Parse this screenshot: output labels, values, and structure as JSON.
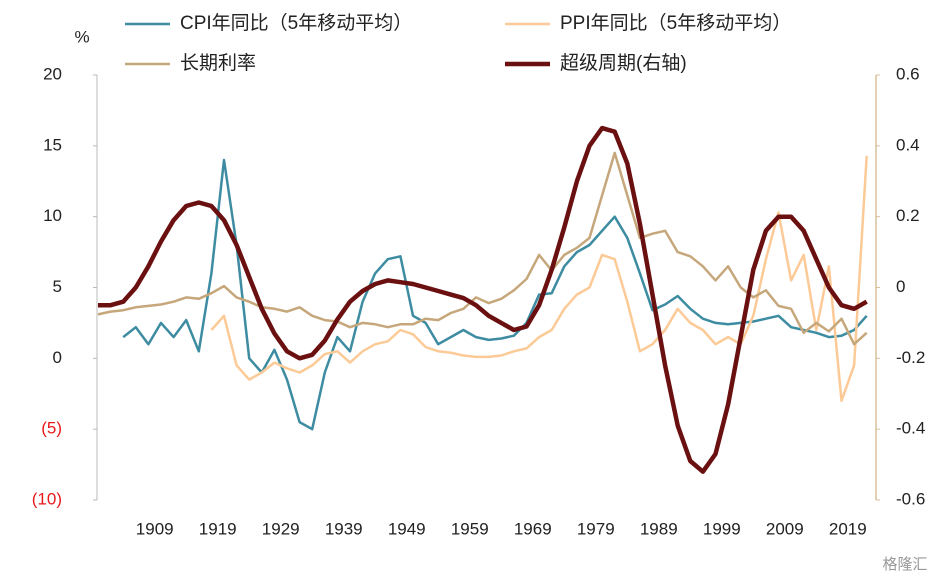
{
  "chart_data": {
    "type": "line",
    "y_label": "%",
    "watermark": "格隆汇",
    "x": [
      1900,
      1902,
      1904,
      1906,
      1908,
      1910,
      1912,
      1914,
      1916,
      1918,
      1920,
      1922,
      1924,
      1926,
      1928,
      1930,
      1932,
      1934,
      1936,
      1938,
      1940,
      1942,
      1944,
      1946,
      1948,
      1950,
      1952,
      1954,
      1956,
      1958,
      1960,
      1962,
      1964,
      1966,
      1968,
      1970,
      1972,
      1974,
      1976,
      1978,
      1980,
      1982,
      1984,
      1986,
      1988,
      1990,
      1992,
      1994,
      1996,
      1998,
      2000,
      2002,
      2004,
      2006,
      2008,
      2010,
      2012,
      2014,
      2016,
      2018,
      2020,
      2022
    ],
    "xlim": [
      1900,
      2023
    ],
    "xticks": [
      1909,
      1919,
      1929,
      1939,
      1949,
      1959,
      1969,
      1979,
      1989,
      1999,
      2009,
      2019
    ],
    "ylim": [
      -10,
      20
    ],
    "yticks": [
      {
        "value": -10,
        "label": "(10)"
      },
      {
        "value": -5,
        "label": "(5)"
      },
      0,
      5,
      10,
      15,
      20
    ],
    "negative_tick_color": "#e8191c",
    "y2lim": [
      -0.6,
      0.6
    ],
    "y2ticks": [
      -0.6,
      -0.4,
      -0.2,
      0,
      0.2,
      0.4,
      0.6
    ],
    "series": [
      {
        "name": "CPI年同比（5年移动平均）",
        "color": "#3d8ca1",
        "width": 2.5,
        "values": [
          null,
          null,
          1.5,
          2.2,
          1.0,
          2.5,
          1.5,
          2.7,
          0.5,
          6,
          14,
          8,
          0,
          -1,
          0.6,
          -1.5,
          -4.5,
          -5,
          -1,
          1.5,
          0.5,
          4,
          6,
          7,
          7.2,
          3,
          2.5,
          1,
          1.5,
          2,
          1.5,
          1.3,
          1.4,
          1.6,
          2.5,
          4.5,
          4.6,
          6.5,
          7.5,
          8,
          9,
          10,
          8.5,
          6,
          3.4,
          3.8,
          4.4,
          3.5,
          2.8,
          2.5,
          2.4,
          2.5,
          2.6,
          2.8,
          3,
          2.2,
          2,
          1.8,
          1.5,
          1.6,
          2,
          3
        ]
      },
      {
        "name": "PPI年同比（5年移动平均）",
        "color": "#fcca96",
        "width": 2.5,
        "values": [
          null,
          null,
          null,
          null,
          null,
          null,
          null,
          null,
          null,
          2,
          3,
          -0.5,
          -1.5,
          -1,
          -0.3,
          -0.7,
          -1,
          -0.5,
          0.3,
          0.5,
          -0.3,
          0.5,
          1,
          1.2,
          2,
          1.7,
          0.8,
          0.5,
          0.4,
          0.2,
          0.1,
          0.1,
          0.2,
          0.5,
          0.7,
          1.5,
          2,
          3.5,
          4.5,
          5,
          7.3,
          7,
          4,
          0.5,
          1,
          2,
          3.5,
          2.5,
          2,
          1,
          1.5,
          1,
          3,
          7,
          10.3,
          5.5,
          7.3,
          2,
          6.5,
          -3,
          -0.5,
          14.3
        ]
      },
      {
        "name": "长期利率",
        "color": "#c6a77b",
        "width": 2.5,
        "values": [
          3.1,
          3.3,
          3.4,
          3.6,
          3.7,
          3.8,
          4.0,
          4.3,
          4.2,
          4.6,
          5.1,
          4.3,
          4.0,
          3.6,
          3.5,
          3.3,
          3.6,
          3.0,
          2.7,
          2.6,
          2.2,
          2.5,
          2.4,
          2.2,
          2.4,
          2.4,
          2.8,
          2.7,
          3.2,
          3.5,
          4.3,
          3.9,
          4.2,
          4.8,
          5.6,
          7.3,
          6.2,
          7.3,
          7.8,
          8.5,
          11.5,
          14.5,
          11.5,
          8.5,
          8.8,
          9,
          7.5,
          7.2,
          6.5,
          5.5,
          6.5,
          5,
          4.3,
          4.8,
          3.7,
          3.5,
          1.8,
          2.5,
          1.9,
          2.8,
          1.0,
          1.8
        ]
      },
      {
        "name": "超级周期(右轴)",
        "color": "#6b1010",
        "width": 4.5,
        "axis": "y2",
        "values": [
          -0.05,
          -0.05,
          -0.04,
          0.0,
          0.06,
          0.13,
          0.19,
          0.23,
          0.24,
          0.23,
          0.19,
          0.12,
          0.03,
          -0.06,
          -0.13,
          -0.18,
          -0.2,
          -0.19,
          -0.15,
          -0.09,
          -0.04,
          -0.01,
          0.01,
          0.02,
          0.015,
          0.01,
          0.0,
          -0.01,
          -0.02,
          -0.03,
          -0.05,
          -0.08,
          -0.1,
          -0.12,
          -0.11,
          -0.05,
          0.05,
          0.17,
          0.3,
          0.4,
          0.45,
          0.44,
          0.35,
          0.18,
          -0.02,
          -0.22,
          -0.39,
          -0.49,
          -0.52,
          -0.47,
          -0.33,
          -0.14,
          0.05,
          0.16,
          0.2,
          0.2,
          0.16,
          0.08,
          0.0,
          -0.05,
          -0.06,
          -0.04
        ]
      }
    ]
  }
}
